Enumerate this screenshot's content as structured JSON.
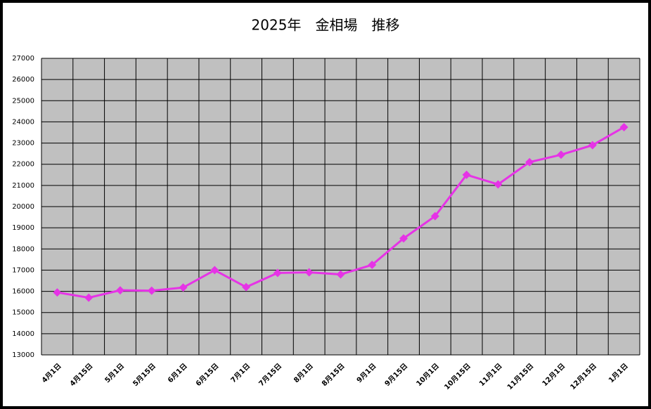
{
  "chart_data": {
    "type": "line",
    "title": "2025年　金相場　推移",
    "categories": [
      "4月1日",
      "4月15日",
      "5月1日",
      "5月15日",
      "6月1日",
      "6月15日",
      "7月1日",
      "7月15日",
      "8月1日",
      "8月15日",
      "9月1日",
      "9月15日",
      "10月1日",
      "10月15日",
      "11月1日",
      "11月15日",
      "12月1日",
      "12月15日",
      "1月1日"
    ],
    "values": [
      15950,
      15700,
      16050,
      16030,
      16180,
      17000,
      16200,
      16870,
      16900,
      16800,
      17250,
      18500,
      19550,
      21500,
      21050,
      22100,
      22450,
      22900,
      23750
    ],
    "color": "#e633e6",
    "ylim": [
      13000,
      27000
    ],
    "yticks": [
      13000,
      14000,
      15000,
      16000,
      17000,
      18000,
      19000,
      20000,
      21000,
      22000,
      23000,
      24000,
      25000,
      26000,
      27000
    ],
    "grid": true
  }
}
